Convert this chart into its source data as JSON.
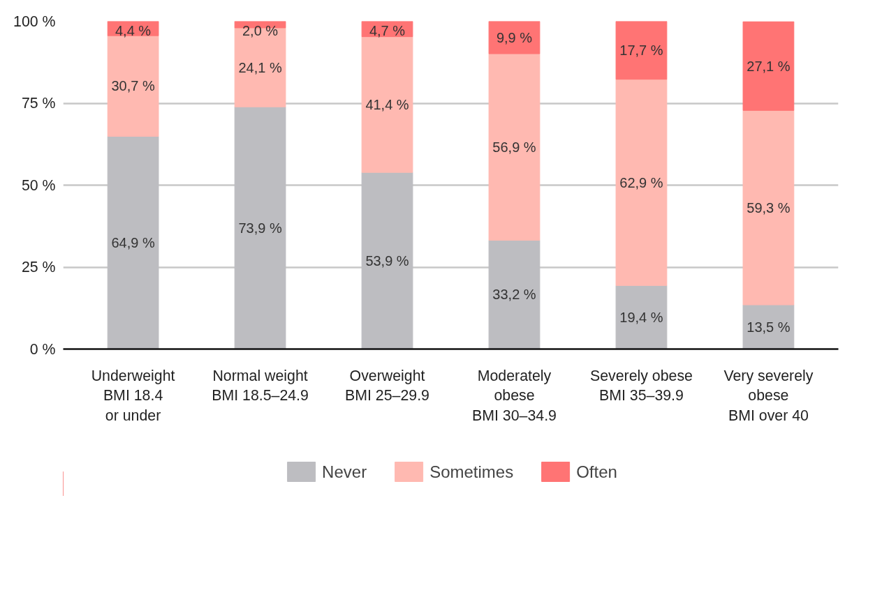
{
  "chart_data": {
    "type": "bar",
    "stacked": true,
    "categories": [
      "Underweight\nBMI 18.4\nor under",
      "Normal weight\nBMI 18.5–24.9",
      "Overweight\nBMI 25–29.9",
      "Moderately\nobese\nBMI 30–34.9",
      "Severely obese\nBMI 35–39.9",
      "Very severely\nobese\nBMI over 40"
    ],
    "series": [
      {
        "name": "Never",
        "color": "#bdbdc1",
        "values": [
          64.9,
          73.9,
          53.9,
          33.2,
          19.4,
          13.5
        ],
        "value_labels": [
          "64,9 %",
          "73,9 %",
          "53,9 %",
          "33,2 %",
          "19,4 %",
          "13,5 %"
        ]
      },
      {
        "name": "Sometimes",
        "color": "#ffb9b1",
        "values": [
          30.7,
          24.1,
          41.4,
          56.9,
          62.9,
          59.3
        ],
        "value_labels": [
          "30,7 %",
          "24,1 %",
          "41,4 %",
          "56,9 %",
          "62,9 %",
          "59,3 %"
        ]
      },
      {
        "name": "Often",
        "color": "#ff7474",
        "values": [
          4.4,
          2.0,
          4.7,
          9.9,
          17.7,
          27.1
        ],
        "value_labels": [
          "4,4 %",
          "2,0 %",
          "4,7 %",
          "9,9 %",
          "17,7 %",
          "27,1 %"
        ]
      }
    ],
    "ylim": [
      0,
      100
    ],
    "yticks": [
      {
        "value": 0,
        "label": "0 %"
      },
      {
        "value": 25,
        "label": "25 %"
      },
      {
        "value": 50,
        "label": "50 %"
      },
      {
        "value": 75,
        "label": "75 %"
      },
      {
        "value": 100,
        "label": "100 %"
      }
    ],
    "grid": "y",
    "legend": "bottom"
  }
}
